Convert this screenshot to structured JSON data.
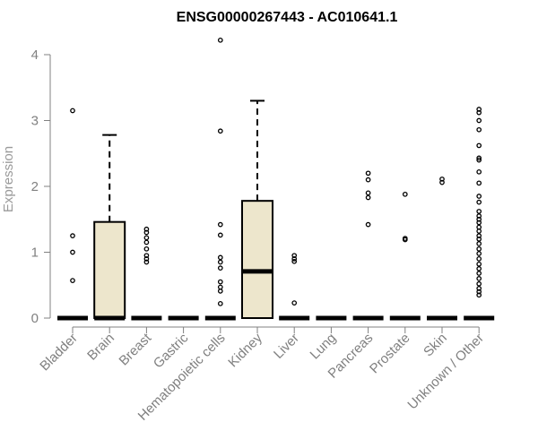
{
  "chart_data": {
    "type": "boxplot",
    "title": "ENSG00000267443 - AC010641.1",
    "xlabel": "",
    "ylabel": "Expression",
    "ylim": [
      0,
      4.3
    ],
    "yticks": [
      0,
      1,
      2,
      3,
      4
    ],
    "grid": false,
    "colors": {
      "box_fill": "#ede6cc",
      "box_stroke": "#000000",
      "axis": "#808080"
    },
    "categories": [
      "Bladder",
      "Brain",
      "Breast",
      "Gastric",
      "Hematopoietic cells",
      "Kidney",
      "Liver",
      "Lung",
      "Pancreas",
      "Prostate",
      "Skin",
      "Unknown / Other"
    ],
    "boxes": [
      {
        "category": "Bladder",
        "q1": 0,
        "median": 0,
        "q3": 0,
        "whisker_low": 0,
        "whisker_high": 0,
        "outliers": [
          3.15,
          1.25,
          1.0,
          0.57
        ]
      },
      {
        "category": "Brain",
        "q1": 0,
        "median": 0,
        "q3": 1.46,
        "whisker_low": 0,
        "whisker_high": 2.78,
        "outliers": []
      },
      {
        "category": "Breast",
        "q1": 0,
        "median": 0,
        "q3": 0,
        "whisker_low": 0,
        "whisker_high": 0,
        "outliers": [
          1.35,
          1.3,
          1.22,
          1.15,
          1.05,
          0.95,
          0.9,
          0.85
        ]
      },
      {
        "category": "Gastric",
        "q1": 0,
        "median": 0,
        "q3": 0,
        "whisker_low": 0,
        "whisker_high": 0,
        "outliers": []
      },
      {
        "category": "Hematopoietic cells",
        "q1": 0,
        "median": 0,
        "q3": 0,
        "whisker_low": 0,
        "whisker_high": 0,
        "outliers": [
          4.22,
          2.84,
          1.42,
          1.26,
          0.92,
          0.85,
          0.76,
          0.55,
          0.47,
          0.41,
          0.22
        ]
      },
      {
        "category": "Kidney",
        "q1": 0,
        "median": 0.71,
        "q3": 1.78,
        "whisker_low": 0,
        "whisker_high": 3.3,
        "outliers": []
      },
      {
        "category": "Liver",
        "q1": 0,
        "median": 0,
        "q3": 0,
        "whisker_low": 0,
        "whisker_high": 0,
        "outliers": [
          0.95,
          0.9,
          0.86,
          0.23
        ]
      },
      {
        "category": "Lung",
        "q1": 0,
        "median": 0,
        "q3": 0,
        "whisker_low": 0,
        "whisker_high": 0,
        "outliers": []
      },
      {
        "category": "Pancreas",
        "q1": 0,
        "median": 0,
        "q3": 0,
        "whisker_low": 0,
        "whisker_high": 0,
        "outliers": [
          2.2,
          2.1,
          1.9,
          1.83,
          1.42
        ]
      },
      {
        "category": "Prostate",
        "q1": 0,
        "median": 0,
        "q3": 0,
        "whisker_low": 0,
        "whisker_high": 0,
        "outliers": [
          1.88,
          1.21,
          1.19
        ]
      },
      {
        "category": "Skin",
        "q1": 0,
        "median": 0,
        "q3": 0,
        "whisker_low": 0,
        "whisker_high": 0,
        "outliers": [
          2.11,
          2.06
        ]
      },
      {
        "category": "Unknown / Other",
        "q1": 0,
        "median": 0,
        "q3": 0,
        "whisker_low": 0,
        "whisker_high": 0,
        "outliers": [
          3.17,
          3.12,
          3.0,
          2.86,
          2.62,
          2.43,
          2.4,
          2.22,
          2.05,
          1.85,
          1.76,
          1.62,
          1.55,
          1.5,
          1.45,
          1.38,
          1.32,
          1.25,
          1.2,
          1.13,
          1.05,
          0.98,
          0.9,
          0.82,
          0.75,
          0.68,
          0.6,
          0.52,
          0.45,
          0.4,
          0.35
        ]
      }
    ]
  }
}
